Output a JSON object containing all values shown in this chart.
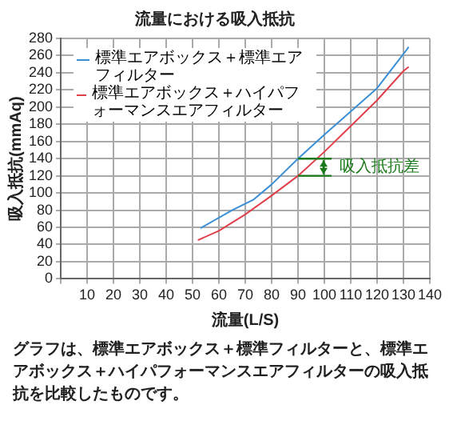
{
  "chart_data": {
    "type": "line",
    "title": "流量における吸入抵抗",
    "xlabel": "流量(L/S)",
    "ylabel": "吸入抵抗(mmAq)",
    "xlim": [
      0,
      140
    ],
    "xticks": [
      {
        "value": 0,
        "label": null
      },
      10,
      20,
      30,
      40,
      50,
      60,
      70,
      80,
      90,
      100,
      110,
      120,
      130,
      140
    ],
    "ylim": [
      0,
      280
    ],
    "yticks": [
      0,
      20,
      40,
      60,
      80,
      100,
      120,
      140,
      160,
      180,
      200,
      220,
      240,
      260,
      280
    ],
    "grid": true,
    "legend": "top left",
    "marker": "none",
    "line_style": "solid",
    "series": [
      {
        "name": "標準エアボックス＋標準エアフィルター",
        "color": "#3a8fd6",
        "x": [
          53,
          65,
          73,
          80,
          90,
          100,
          110,
          120,
          130,
          132
        ],
        "values": [
          59,
          80,
          92,
          110,
          140,
          168,
          195,
          222,
          262,
          270
        ]
      },
      {
        "name": "標準エアボックス＋ハイパフォーマンスエアフィルター",
        "color": "#e0404a",
        "x": [
          52,
          60,
          70,
          80,
          90,
          100,
          110,
          120,
          130,
          132
        ],
        "values": [
          45,
          56,
          75,
          97,
          120,
          148,
          178,
          208,
          242,
          247
        ]
      }
    ],
    "annotations": [
      {
        "text": "吸入抵抗差",
        "x": 90,
        "y": 130
      },
      "グラフは、標準エアボックス＋標準フィルターと、標準エアボックス＋ハイパフォーマンスエアフィルターの吸入抵抗を比較したものです。"
    ]
  }
}
